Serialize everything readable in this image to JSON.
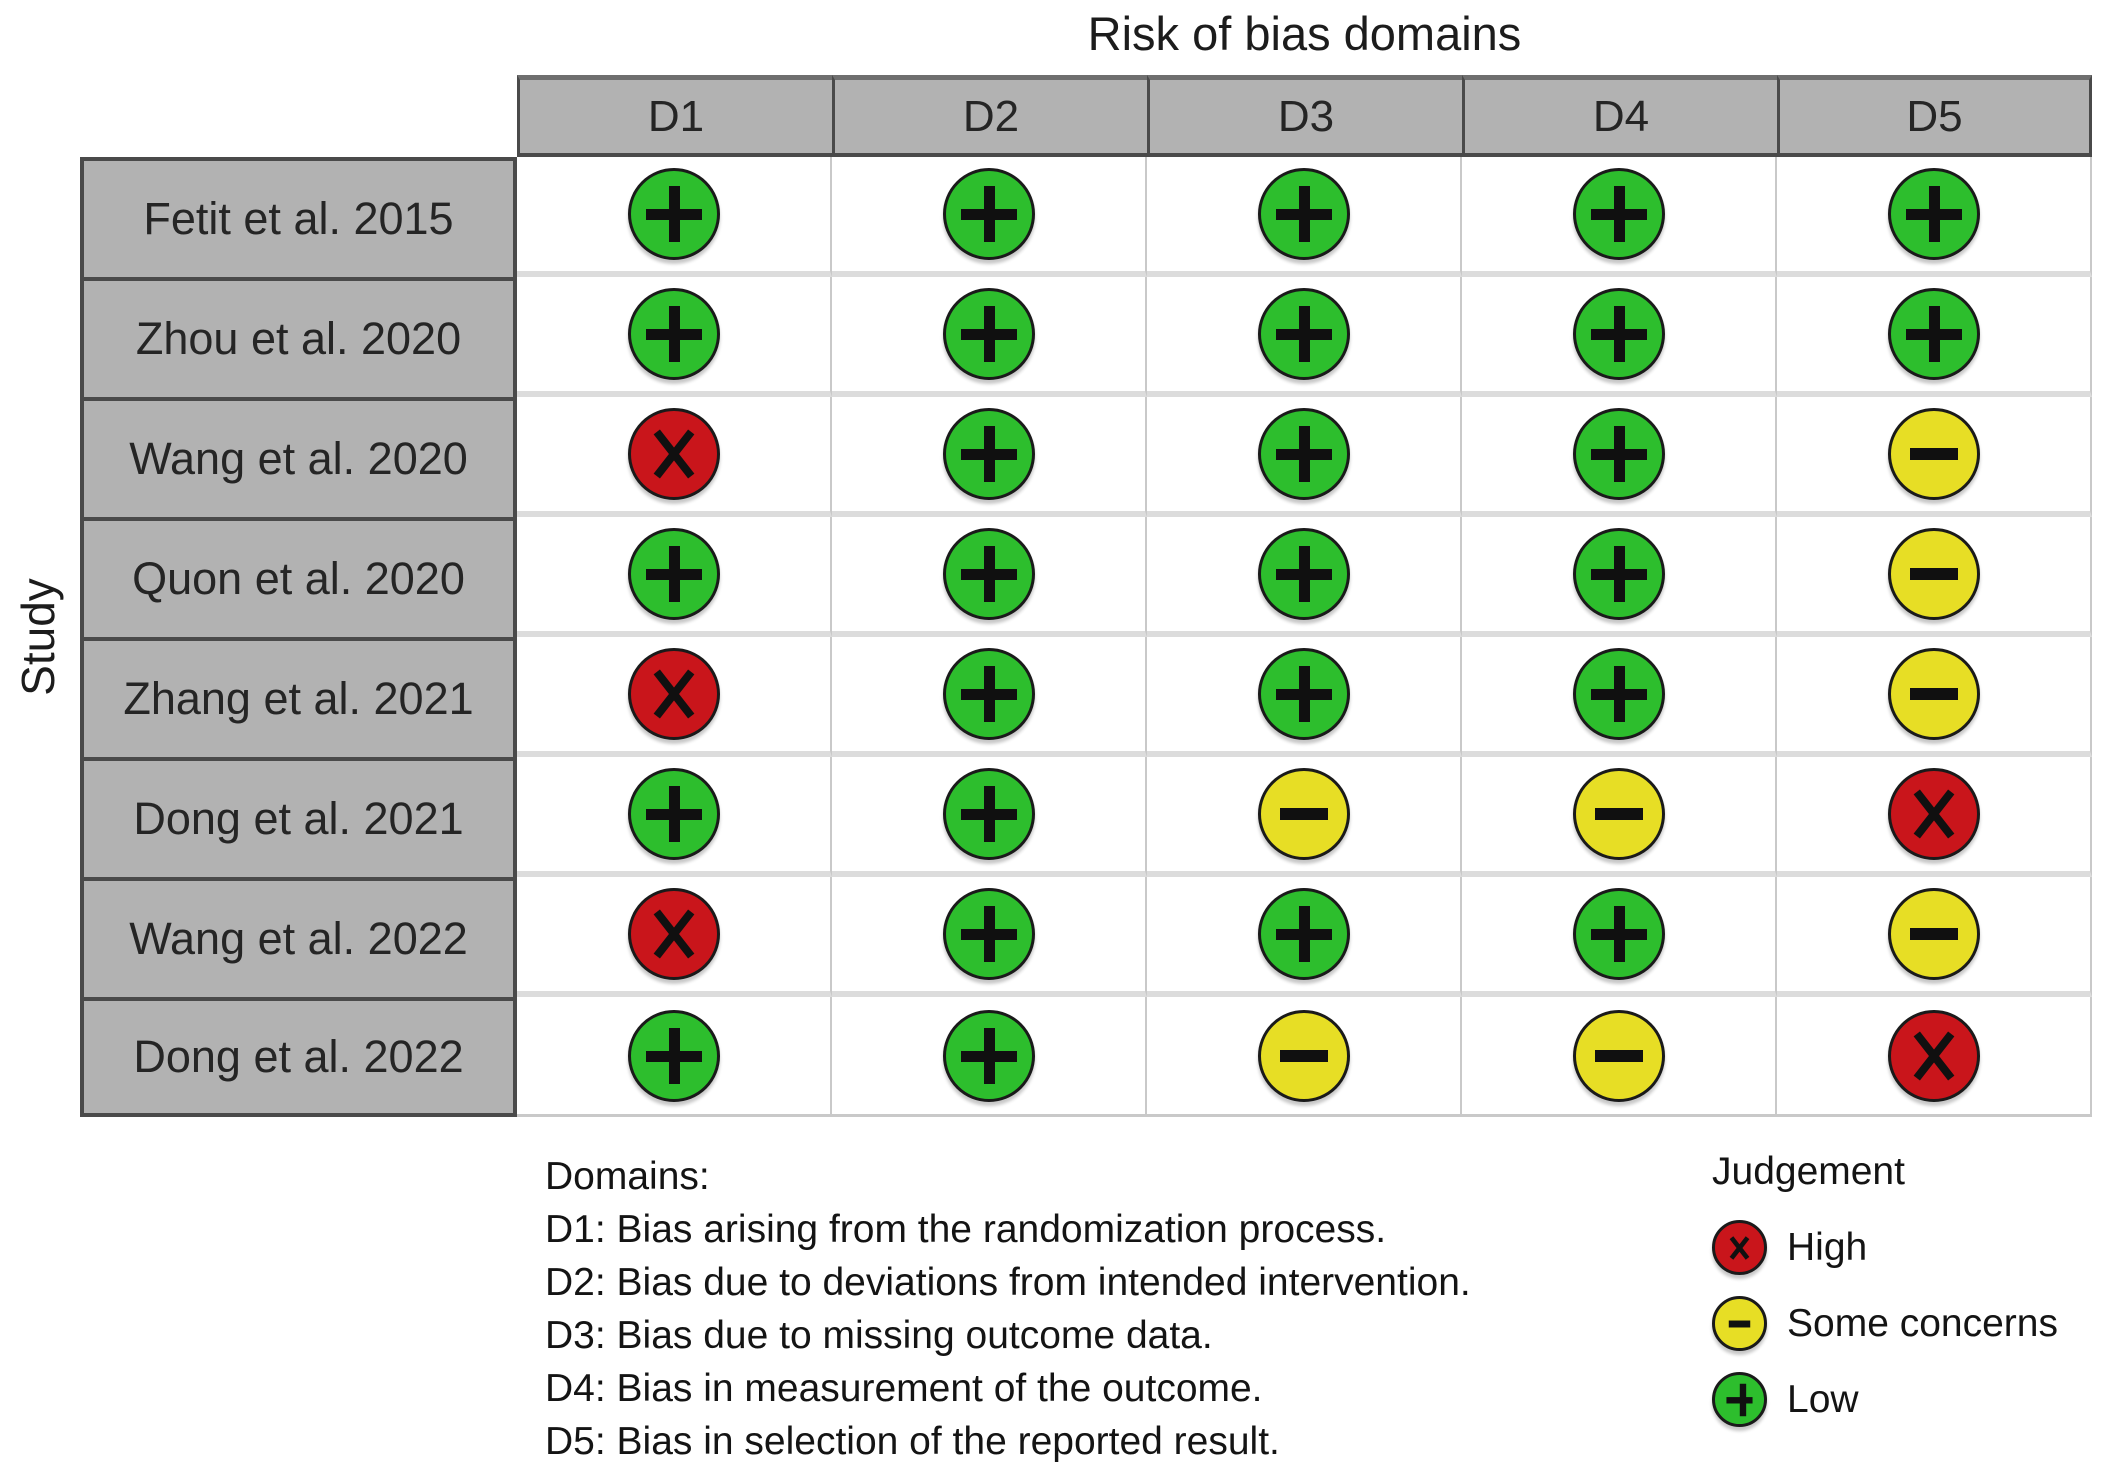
{
  "chart_data": {
    "type": "table",
    "title": "Risk of bias domains",
    "y_axis_label": "Study",
    "columns": [
      "D1",
      "D2",
      "D3",
      "D4",
      "D5"
    ],
    "rows": [
      {
        "study": "Fetit et al. 2015",
        "judgements": [
          "low",
          "low",
          "low",
          "low",
          "low"
        ]
      },
      {
        "study": "Zhou et al. 2020",
        "judgements": [
          "low",
          "low",
          "low",
          "low",
          "low"
        ]
      },
      {
        "study": "Wang et al. 2020",
        "judgements": [
          "high",
          "low",
          "low",
          "low",
          "some_concerns"
        ]
      },
      {
        "study": "Quon et al. 2020",
        "judgements": [
          "low",
          "low",
          "low",
          "low",
          "some_concerns"
        ]
      },
      {
        "study": "Zhang et al. 2021",
        "judgements": [
          "high",
          "low",
          "low",
          "low",
          "some_concerns"
        ]
      },
      {
        "study": "Dong et al. 2021",
        "judgements": [
          "low",
          "low",
          "some_concerns",
          "some_concerns",
          "high"
        ]
      },
      {
        "study": "Wang et al. 2022",
        "judgements": [
          "high",
          "low",
          "low",
          "low",
          "some_concerns"
        ]
      },
      {
        "study": "Dong et al. 2022",
        "judgements": [
          "low",
          "low",
          "some_concerns",
          "some_concerns",
          "high"
        ]
      }
    ],
    "judgement_styles": {
      "low": {
        "color": "#2DBE2D",
        "symbol": "plus-icon"
      },
      "some_concerns": {
        "color": "#E7DE25",
        "symbol": "minus-icon"
      },
      "high": {
        "color": "#C9151B",
        "symbol": "x-mark-icon"
      }
    },
    "footnotes": {
      "heading": "Domains:",
      "items": [
        "D1: Bias arising from the randomization process.",
        "D2: Bias due to deviations from intended intervention.",
        "D3: Bias due to missing outcome data.",
        "D4: Bias in measurement of the outcome.",
        "D5: Bias in selection of the reported result."
      ]
    },
    "legend": {
      "title": "Judgement",
      "items": [
        {
          "label": "High",
          "judgement": "high"
        },
        {
          "label": "Some concerns",
          "judgement": "some_concerns"
        },
        {
          "label": "Low",
          "judgement": "low"
        }
      ]
    },
    "layout_hints": {
      "legend_position": "bottom-right",
      "grid": "on"
    }
  }
}
